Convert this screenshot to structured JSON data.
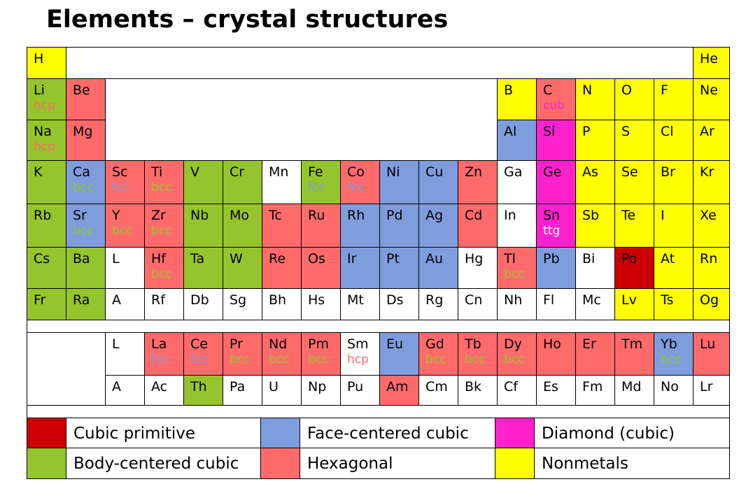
{
  "title": "Elements – crystal structures",
  "colors": {
    "cubic-primitive": "#cc0000",
    "face-centered-cubic": "#7f9ddd",
    "diamond": "#ff22cc",
    "body-centered-cubic": "#95c52c",
    "hexagonal": "#ff6b6b",
    "nonmetal": "#ffff00",
    "unknown": "#ffffff"
  },
  "note_colors": {
    "hcp": "#ff6b6b",
    "bcc": "#95c52c",
    "fcc": "#7f9ddd",
    "cub": "#ff22cc",
    "ttg": "#ffffff"
  },
  "rows": [
    [
      {
        "symbol": "H",
        "type": "nonmetal"
      },
      {
        "symbol": "He",
        "type": "nonmetal"
      }
    ],
    [
      {
        "symbol": "Li",
        "type": "body-centered-cubic",
        "note": "hcp"
      },
      {
        "symbol": "Be",
        "type": "hexagonal"
      },
      {
        "symbol": "B",
        "type": "nonmetal"
      },
      {
        "symbol": "C",
        "type": "hexagonal",
        "note": "cub"
      },
      {
        "symbol": "N",
        "type": "nonmetal"
      },
      {
        "symbol": "O",
        "type": "nonmetal"
      },
      {
        "symbol": "F",
        "type": "nonmetal"
      },
      {
        "symbol": "Ne",
        "type": "nonmetal"
      }
    ],
    [
      {
        "symbol": "Na",
        "type": "body-centered-cubic",
        "note": "hcp"
      },
      {
        "symbol": "Mg",
        "type": "hexagonal"
      },
      {
        "symbol": "Al",
        "type": "face-centered-cubic"
      },
      {
        "symbol": "Si",
        "type": "diamond"
      },
      {
        "symbol": "P",
        "type": "nonmetal"
      },
      {
        "symbol": "S",
        "type": "nonmetal"
      },
      {
        "symbol": "Cl",
        "type": "nonmetal"
      },
      {
        "symbol": "Ar",
        "type": "nonmetal"
      }
    ],
    [
      {
        "symbol": "K",
        "type": "body-centered-cubic"
      },
      {
        "symbol": "Ca",
        "type": "face-centered-cubic",
        "note": "bcc"
      },
      {
        "symbol": "Sc",
        "type": "hexagonal",
        "note": "fcc"
      },
      {
        "symbol": "Ti",
        "type": "hexagonal",
        "note": "bcc"
      },
      {
        "symbol": "V",
        "type": "body-centered-cubic"
      },
      {
        "symbol": "Cr",
        "type": "body-centered-cubic"
      },
      {
        "symbol": "Mn",
        "type": "unknown"
      },
      {
        "symbol": "Fe",
        "type": "body-centered-cubic",
        "note": "fcc"
      },
      {
        "symbol": "Co",
        "type": "hexagonal",
        "note": "fcc"
      },
      {
        "symbol": "Ni",
        "type": "face-centered-cubic"
      },
      {
        "symbol": "Cu",
        "type": "face-centered-cubic"
      },
      {
        "symbol": "Zn",
        "type": "hexagonal"
      },
      {
        "symbol": "Ga",
        "type": "unknown"
      },
      {
        "symbol": "Ge",
        "type": "diamond"
      },
      {
        "symbol": "As",
        "type": "nonmetal"
      },
      {
        "symbol": "Se",
        "type": "nonmetal"
      },
      {
        "symbol": "Br",
        "type": "nonmetal"
      },
      {
        "symbol": "Kr",
        "type": "nonmetal"
      }
    ],
    [
      {
        "symbol": "Rb",
        "type": "body-centered-cubic"
      },
      {
        "symbol": "Sr",
        "type": "face-centered-cubic",
        "note": "bcc"
      },
      {
        "symbol": "Y",
        "type": "hexagonal",
        "note": "bcc"
      },
      {
        "symbol": "Zr",
        "type": "hexagonal",
        "note": "bcc"
      },
      {
        "symbol": "Nb",
        "type": "body-centered-cubic"
      },
      {
        "symbol": "Mo",
        "type": "body-centered-cubic"
      },
      {
        "symbol": "Tc",
        "type": "hexagonal"
      },
      {
        "symbol": "Ru",
        "type": "hexagonal"
      },
      {
        "symbol": "Rh",
        "type": "face-centered-cubic"
      },
      {
        "symbol": "Pd",
        "type": "face-centered-cubic"
      },
      {
        "symbol": "Ag",
        "type": "face-centered-cubic"
      },
      {
        "symbol": "Cd",
        "type": "hexagonal"
      },
      {
        "symbol": "In",
        "type": "unknown"
      },
      {
        "symbol": "Sn",
        "type": "diamond",
        "note": "ttg"
      },
      {
        "symbol": "Sb",
        "type": "nonmetal"
      },
      {
        "symbol": "Te",
        "type": "nonmetal"
      },
      {
        "symbol": "I",
        "type": "nonmetal"
      },
      {
        "symbol": "Xe",
        "type": "nonmetal"
      }
    ],
    [
      {
        "symbol": "Cs",
        "type": "body-centered-cubic"
      },
      {
        "symbol": "Ba",
        "type": "body-centered-cubic"
      },
      {
        "symbol": "L",
        "type": "unknown"
      },
      {
        "symbol": "Hf",
        "type": "hexagonal",
        "note": "bcc"
      },
      {
        "symbol": "Ta",
        "type": "body-centered-cubic"
      },
      {
        "symbol": "W",
        "type": "body-centered-cubic"
      },
      {
        "symbol": "Re",
        "type": "hexagonal"
      },
      {
        "symbol": "Os",
        "type": "hexagonal"
      },
      {
        "symbol": "Ir",
        "type": "face-centered-cubic"
      },
      {
        "symbol": "Pt",
        "type": "face-centered-cubic"
      },
      {
        "symbol": "Au",
        "type": "face-centered-cubic"
      },
      {
        "symbol": "Hg",
        "type": "unknown"
      },
      {
        "symbol": "Tl",
        "type": "hexagonal",
        "note": "bcc"
      },
      {
        "symbol": "Pb",
        "type": "face-centered-cubic"
      },
      {
        "symbol": "Bi",
        "type": "unknown"
      },
      {
        "symbol": "Po",
        "type": "cubic-primitive"
      },
      {
        "symbol": "At",
        "type": "nonmetal"
      },
      {
        "symbol": "Rn",
        "type": "nonmetal"
      }
    ],
    [
      {
        "symbol": "Fr",
        "type": "body-centered-cubic"
      },
      {
        "symbol": "Ra",
        "type": "body-centered-cubic"
      },
      {
        "symbol": "A",
        "type": "unknown"
      },
      {
        "symbol": "Rf",
        "type": "unknown"
      },
      {
        "symbol": "Db",
        "type": "unknown"
      },
      {
        "symbol": "Sg",
        "type": "unknown"
      },
      {
        "symbol": "Bh",
        "type": "unknown"
      },
      {
        "symbol": "Hs",
        "type": "unknown"
      },
      {
        "symbol": "Mt",
        "type": "unknown"
      },
      {
        "symbol": "Ds",
        "type": "unknown"
      },
      {
        "symbol": "Rg",
        "type": "unknown"
      },
      {
        "symbol": "Cn",
        "type": "unknown"
      },
      {
        "symbol": "Nh",
        "type": "unknown"
      },
      {
        "symbol": "Fl",
        "type": "unknown"
      },
      {
        "symbol": "Mc",
        "type": "unknown"
      },
      {
        "symbol": "Lv",
        "type": "nonmetal"
      },
      {
        "symbol": "Ts",
        "type": "nonmetal"
      },
      {
        "symbol": "Og",
        "type": "nonmetal"
      }
    ]
  ],
  "f_rows": [
    [
      {
        "symbol": "L",
        "type": "unknown"
      },
      {
        "symbol": "La",
        "type": "hexagonal",
        "note": "fcc"
      },
      {
        "symbol": "Ce",
        "type": "hexagonal",
        "note": "fcc"
      },
      {
        "symbol": "Pr",
        "type": "hexagonal",
        "note": "bcc"
      },
      {
        "symbol": "Nd",
        "type": "hexagonal",
        "note": "bcc"
      },
      {
        "symbol": "Pm",
        "type": "hexagonal",
        "note": "bcc"
      },
      {
        "symbol": "Sm",
        "type": "unknown",
        "note": "hcp"
      },
      {
        "symbol": "Eu",
        "type": "face-centered-cubic"
      },
      {
        "symbol": "Gd",
        "type": "hexagonal",
        "note": "bcc"
      },
      {
        "symbol": "Tb",
        "type": "hexagonal",
        "note": "bcc"
      },
      {
        "symbol": "Dy",
        "type": "hexagonal",
        "note": "bcc"
      },
      {
        "symbol": "Ho",
        "type": "hexagonal"
      },
      {
        "symbol": "Er",
        "type": "hexagonal"
      },
      {
        "symbol": "Tm",
        "type": "hexagonal"
      },
      {
        "symbol": "Yb",
        "type": "face-centered-cubic",
        "note": "bcc"
      },
      {
        "symbol": "Lu",
        "type": "hexagonal"
      }
    ],
    [
      {
        "symbol": "A",
        "type": "unknown"
      },
      {
        "symbol": "Ac",
        "type": "unknown"
      },
      {
        "symbol": "Th",
        "type": "body-centered-cubic"
      },
      {
        "symbol": "Pa",
        "type": "unknown"
      },
      {
        "symbol": "U",
        "type": "unknown"
      },
      {
        "symbol": "Np",
        "type": "unknown"
      },
      {
        "symbol": "Pu",
        "type": "unknown"
      },
      {
        "symbol": "Am",
        "type": "hexagonal"
      },
      {
        "symbol": "Cm",
        "type": "unknown"
      },
      {
        "symbol": "Bk",
        "type": "unknown"
      },
      {
        "symbol": "Cf",
        "type": "unknown"
      },
      {
        "symbol": "Es",
        "type": "unknown"
      },
      {
        "symbol": "Fm",
        "type": "unknown"
      },
      {
        "symbol": "Md",
        "type": "unknown"
      },
      {
        "symbol": "No",
        "type": "unknown"
      },
      {
        "symbol": "Lr",
        "type": "unknown"
      }
    ]
  ],
  "legend": [
    {
      "type": "cubic-primitive",
      "label": "Cubic primitive"
    },
    {
      "type": "face-centered-cubic",
      "label": "Face-centered cubic"
    },
    {
      "type": "diamond",
      "label": "Diamond (cubic)"
    },
    {
      "type": "body-centered-cubic",
      "label": "Body-centered cubic"
    },
    {
      "type": "hexagonal",
      "label": "Hexagonal"
    },
    {
      "type": "nonmetal",
      "label": "Nonmetals"
    }
  ]
}
